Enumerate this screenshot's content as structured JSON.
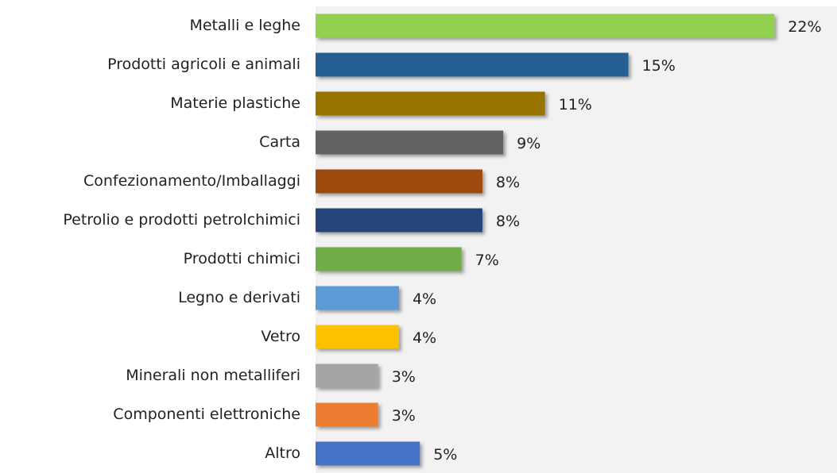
{
  "chart_data": {
    "type": "barh",
    "categories": [
      "Metalli e leghe",
      "Prodotti agricoli e animali",
      "Materie plastiche",
      "Carta",
      "Confezionamento/Imballaggi",
      "Petrolio e prodotti petrolchimici",
      "Prodotti chimici",
      "Legno e derivati",
      "Vetro",
      "Minerali non metalliferi",
      "Componenti elettroniche",
      "Altro"
    ],
    "values": [
      22,
      15,
      11,
      9,
      8,
      8,
      7,
      4,
      4,
      3,
      3,
      5
    ],
    "value_labels": [
      "22%",
      "15%",
      "11%",
      "9%",
      "8%",
      "8%",
      "7%",
      "4%",
      "4%",
      "3%",
      "3%",
      "5%"
    ],
    "colors": [
      "#92d050",
      "#255e91",
      "#997300",
      "#636363",
      "#9e480e",
      "#264478",
      "#70ad47",
      "#5b9bd5",
      "#ffc000",
      "#a5a5a5",
      "#ed7d31",
      "#4472c4"
    ],
    "xlim": [
      0,
      25
    ]
  }
}
